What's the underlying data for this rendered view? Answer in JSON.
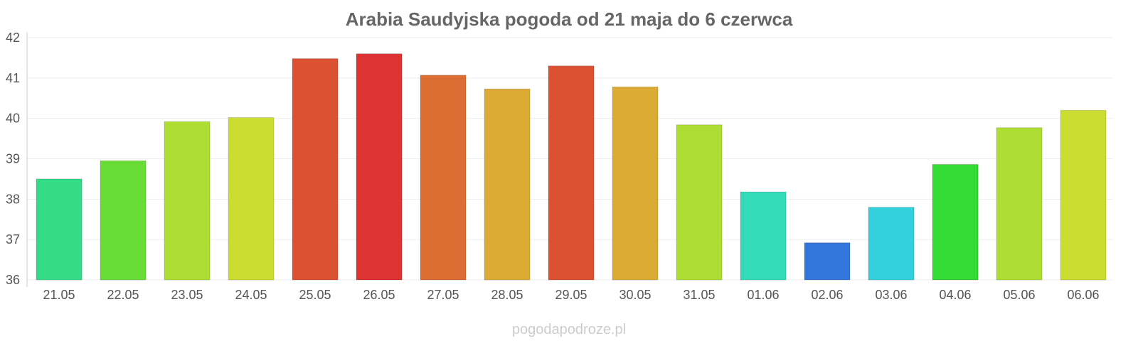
{
  "chart_data": {
    "type": "bar",
    "title": "Arabia Saudyjska pogoda od 21 maja do 6 czerwca",
    "xlabel": "",
    "ylabel": "",
    "ylim": [
      36,
      42
    ],
    "yticks": [
      "36",
      "37",
      "38",
      "39",
      "40",
      "41",
      "42"
    ],
    "categories": [
      "21.05",
      "22.05",
      "23.05",
      "24.05",
      "25.05",
      "26.05",
      "27.05",
      "28.05",
      "29.05",
      "30.05",
      "31.05",
      "01.06",
      "02.06",
      "03.06",
      "04.06",
      "05.06",
      "06.06"
    ],
    "values": [
      38.5,
      38.95,
      39.92,
      40.02,
      41.48,
      41.6,
      41.07,
      40.73,
      41.3,
      40.78,
      39.84,
      38.18,
      36.92,
      37.8,
      38.86,
      39.77,
      40.2
    ],
    "colors": [
      "#36db88",
      "#67dd35",
      "#aedd34",
      "#ccdd32",
      "#dd5133",
      "#dd3333",
      "#dd6e33",
      "#dcab33",
      "#dd5133",
      "#dcab33",
      "#aedd34",
      "#33dbb8",
      "#3377dd",
      "#33cfdb",
      "#33db33",
      "#aedd34",
      "#ccdd32"
    ],
    "grid": true,
    "legend": "none"
  },
  "watermark": "pogodapodroze.pl"
}
